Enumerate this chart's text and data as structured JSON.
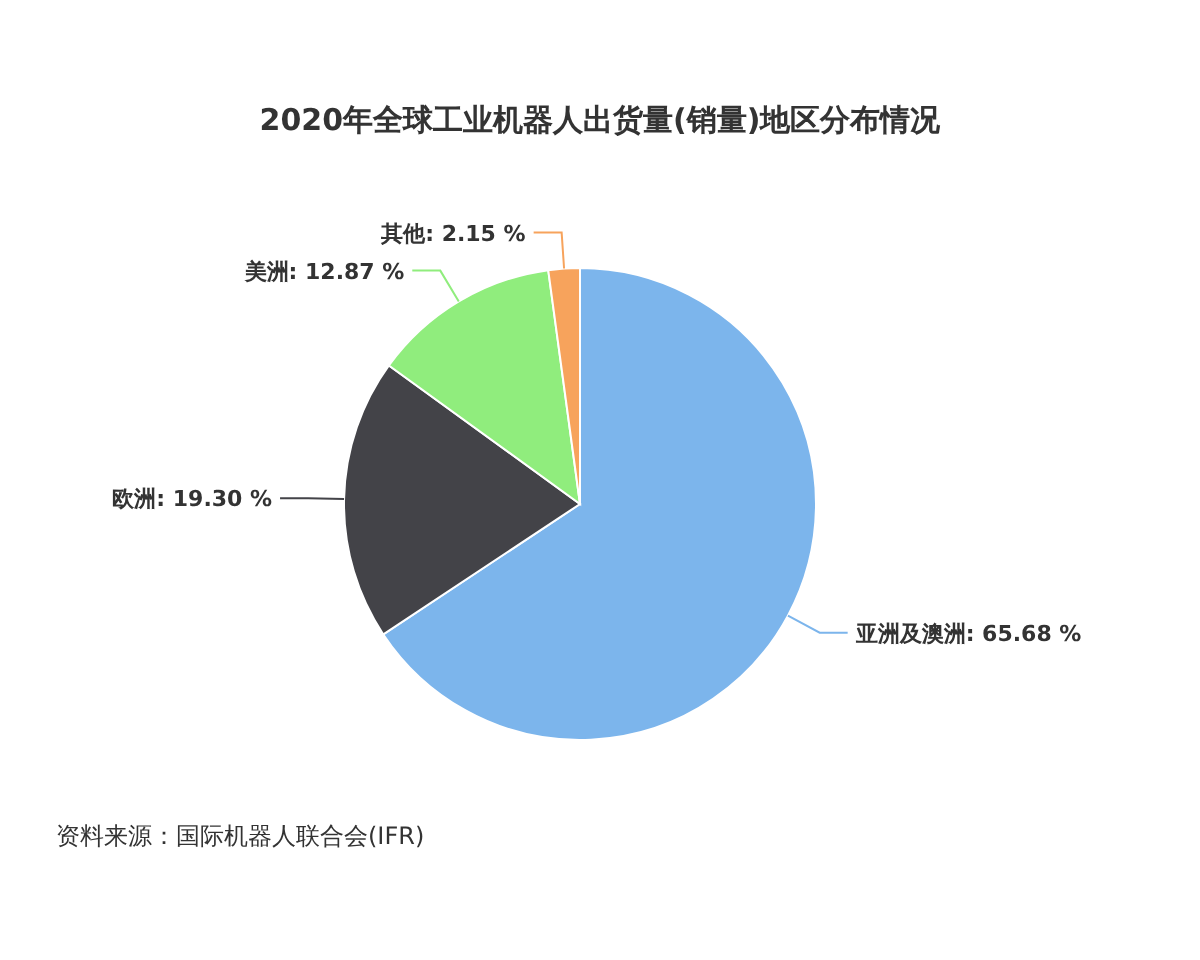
{
  "chart_data": {
    "type": "pie",
    "title": "2020年全球工业机器人出货量(销量)地区分布情况",
    "categories": [
      "亚洲及澳洲",
      "欧洲",
      "美洲",
      "其他"
    ],
    "values": [
      65.68,
      19.3,
      12.87,
      2.15
    ],
    "value_labels": [
      "65.68 %",
      "19.30 %",
      "12.87 %",
      "2.15 %"
    ],
    "colors": [
      "#7cb5ec",
      "#434348",
      "#90ed7d",
      "#f7a35c"
    ],
    "annotations": [
      "资料来源：国际机器人联合会(IFR)"
    ]
  }
}
